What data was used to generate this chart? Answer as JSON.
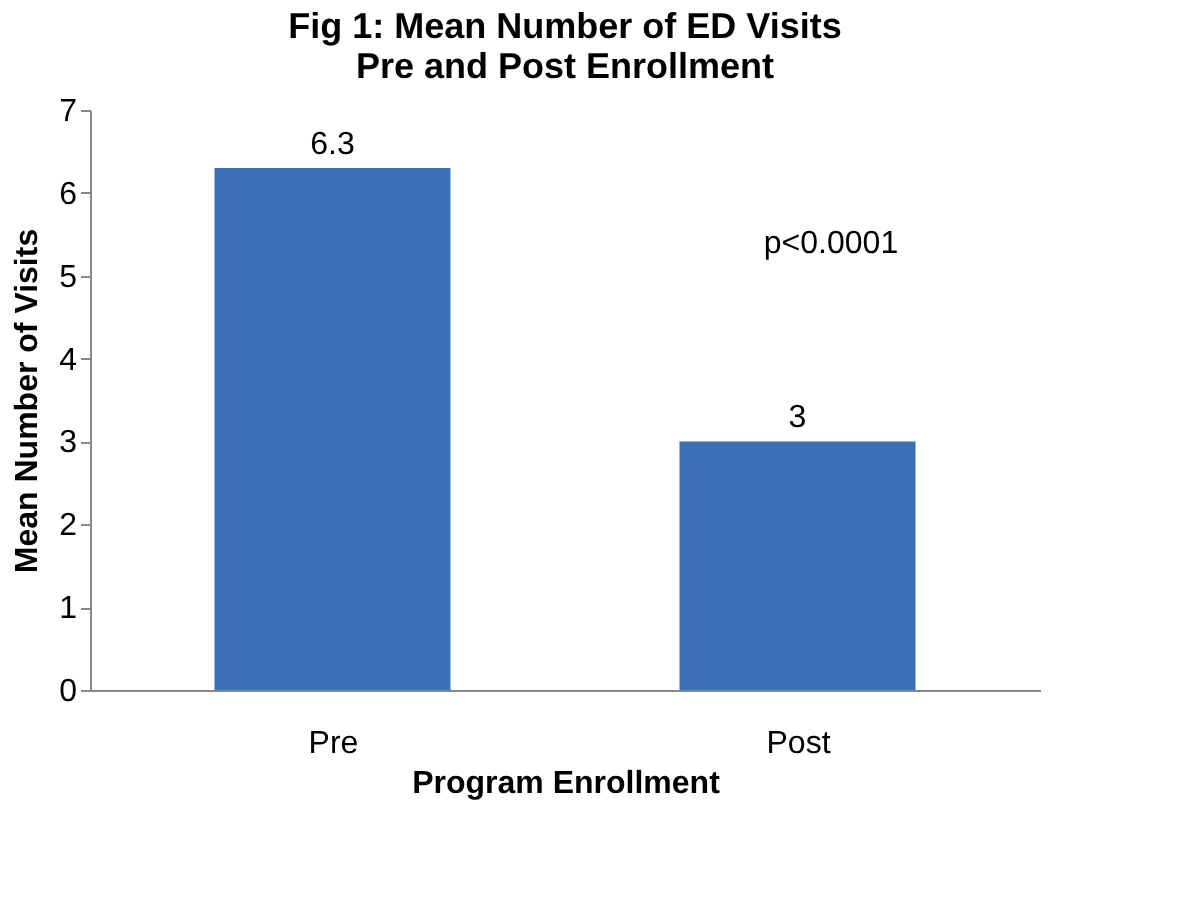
{
  "chart_data": {
    "type": "bar",
    "title": "Fig 1: Mean Number of ED Visits\nPre and Post Enrollment",
    "xlabel": "Program Enrollment",
    "ylabel": "Mean Number of Visits",
    "categories": [
      "Pre",
      "Post"
    ],
    "series": [
      {
        "color": "#3b6fb6",
        "values": [
          6.3,
          3
        ]
      }
    ],
    "ylim": [
      0,
      7
    ],
    "yticks": [
      0,
      1,
      2,
      3,
      4,
      5,
      6,
      7
    ],
    "data_labels": true,
    "grid": false,
    "annotations": [
      "p<0.0001"
    ]
  }
}
